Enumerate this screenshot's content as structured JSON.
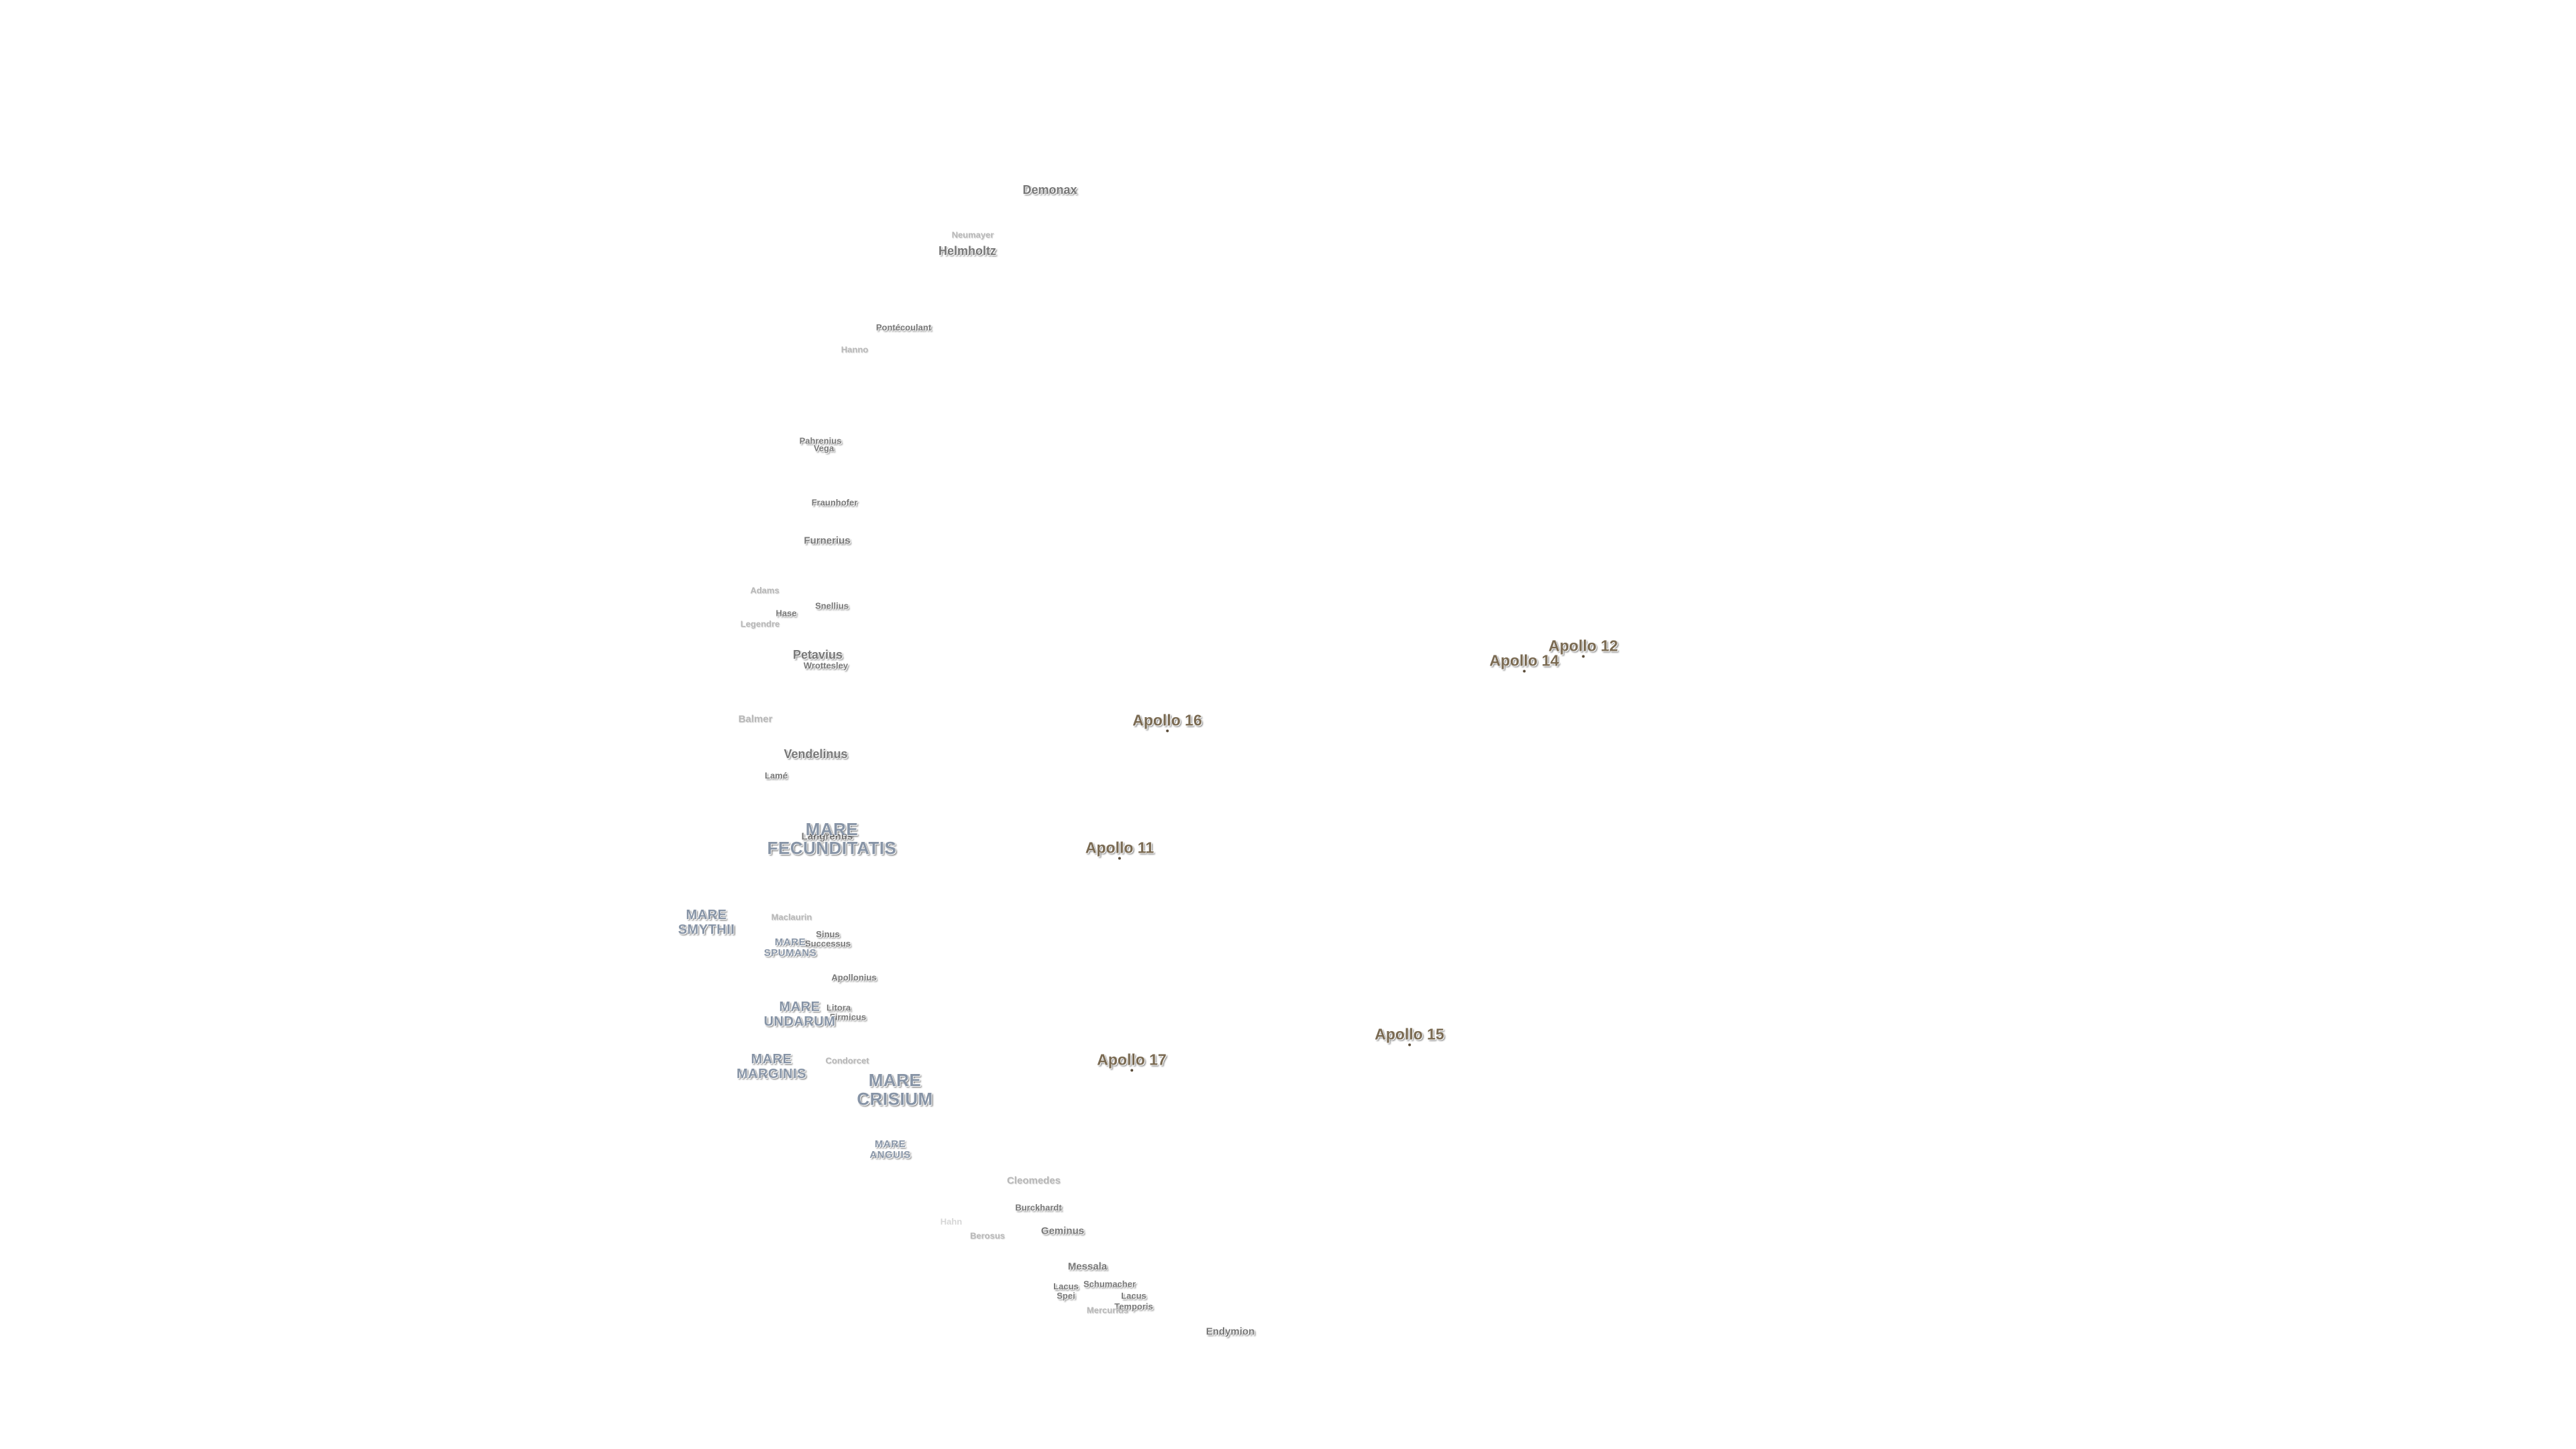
{
  "map": {
    "craters": [
      {
        "name": "Demonax"
      },
      {
        "name": "Neumayer"
      },
      {
        "name": "Helmholtz"
      },
      {
        "name": "Pontécoulant"
      },
      {
        "name": "Hanno"
      },
      {
        "name": "Pahrenius"
      },
      {
        "name": "Vega"
      },
      {
        "name": "Fraunhofer"
      },
      {
        "name": "Furnerius"
      },
      {
        "name": "Adams"
      },
      {
        "name": "Hase"
      },
      {
        "name": "Legendre"
      },
      {
        "name": "Snellius"
      },
      {
        "name": "Petavius"
      },
      {
        "name": "Wrottesley"
      },
      {
        "name": "Balmer"
      },
      {
        "name": "Vendelinus"
      },
      {
        "name": "Lamé"
      },
      {
        "name": "Langrenus"
      },
      {
        "name": "Maclaurin"
      },
      {
        "name": "Sinus Successus"
      },
      {
        "name": "Apollonius"
      },
      {
        "name": "Litora"
      },
      {
        "name": "Firmicus"
      },
      {
        "name": "Condorcet"
      },
      {
        "name": "Cleomedes"
      },
      {
        "name": "Burckhardt"
      },
      {
        "name": "Hahn"
      },
      {
        "name": "Berosus"
      },
      {
        "name": "Geminus"
      },
      {
        "name": "Messala"
      },
      {
        "name": "Lacus Spei"
      },
      {
        "name": "Schumacher"
      },
      {
        "name": "Lacus Temporis"
      },
      {
        "name": "Mercurius"
      },
      {
        "name": "Endymion"
      }
    ],
    "maria": [
      {
        "name": "MARE FECUNDITATIS"
      },
      {
        "name": "MARE SMYTHII"
      },
      {
        "name": "MARE SPUMANS"
      },
      {
        "name": "MARE UNDARUM"
      },
      {
        "name": "MARE MARGINIS"
      },
      {
        "name": "MARE CRISIUM"
      },
      {
        "name": "MARE ANGUIS"
      }
    ],
    "apollo_sites": [
      {
        "name": "Apollo 12"
      },
      {
        "name": "Apollo 14"
      },
      {
        "name": "Apollo 16"
      },
      {
        "name": "Apollo 11"
      },
      {
        "name": "Apollo 15"
      },
      {
        "name": "Apollo 17"
      }
    ],
    "colors": {
      "background": "#ffffff",
      "crater_text": "#777777",
      "mare_text": "#8794a6",
      "apollo_text": "#7a6a52"
    }
  }
}
